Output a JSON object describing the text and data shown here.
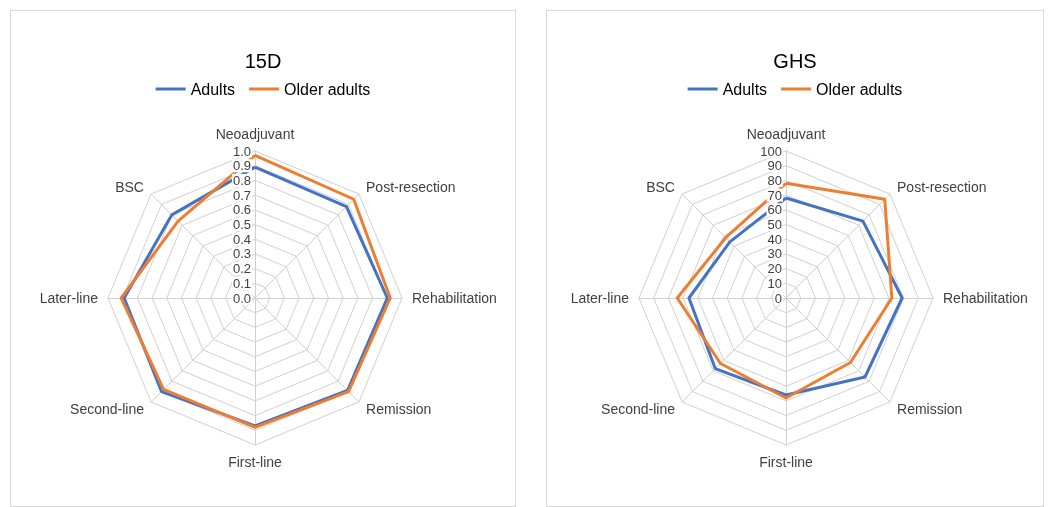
{
  "chart_data": [
    {
      "type": "radar",
      "title": "15D",
      "categories": [
        "Neoadjuvant",
        "Post-resection",
        "Rehabilitation",
        "Remission",
        "First-line",
        "Second-line",
        "Later-line",
        "BSC"
      ],
      "ylim": [
        0,
        1
      ],
      "yticks": [
        {
          "value": 0,
          "label": "0.0"
        },
        0.1,
        0.2,
        0.3,
        0.4,
        0.5,
        0.6,
        0.7,
        0.8,
        0.9,
        {
          "value": 1,
          "label": "1.0"
        }
      ],
      "legend": "top",
      "series": [
        {
          "name": "Adults",
          "color": "#4472c4",
          "values": [
            0.89,
            0.88,
            0.9,
            0.89,
            0.87,
            0.9,
            0.89,
            0.8
          ]
        },
        {
          "name": "Older adults",
          "color": "#ed7d31",
          "values": [
            0.97,
            0.95,
            0.92,
            0.9,
            0.88,
            0.88,
            0.91,
            0.74
          ]
        }
      ]
    },
    {
      "type": "radar",
      "title": "GHS",
      "categories": [
        "Neoadjuvant",
        "Post-resection",
        "Rehabilitation",
        "Remission",
        "First-line",
        "Second-line",
        "Later-line",
        "BSC"
      ],
      "ylim": [
        0,
        100
      ],
      "yticks": [
        0,
        10,
        20,
        30,
        40,
        50,
        60,
        70,
        80,
        90,
        100
      ],
      "legend": "top",
      "series": [
        {
          "name": "Adults",
          "color": "#4472c4",
          "values": [
            68,
            74,
            79,
            76,
            66,
            68,
            66,
            54
          ]
        },
        {
          "name": "Older adults",
          "color": "#ed7d31",
          "values": [
            78,
            95,
            72,
            62,
            68,
            63,
            74,
            58
          ]
        }
      ]
    }
  ]
}
